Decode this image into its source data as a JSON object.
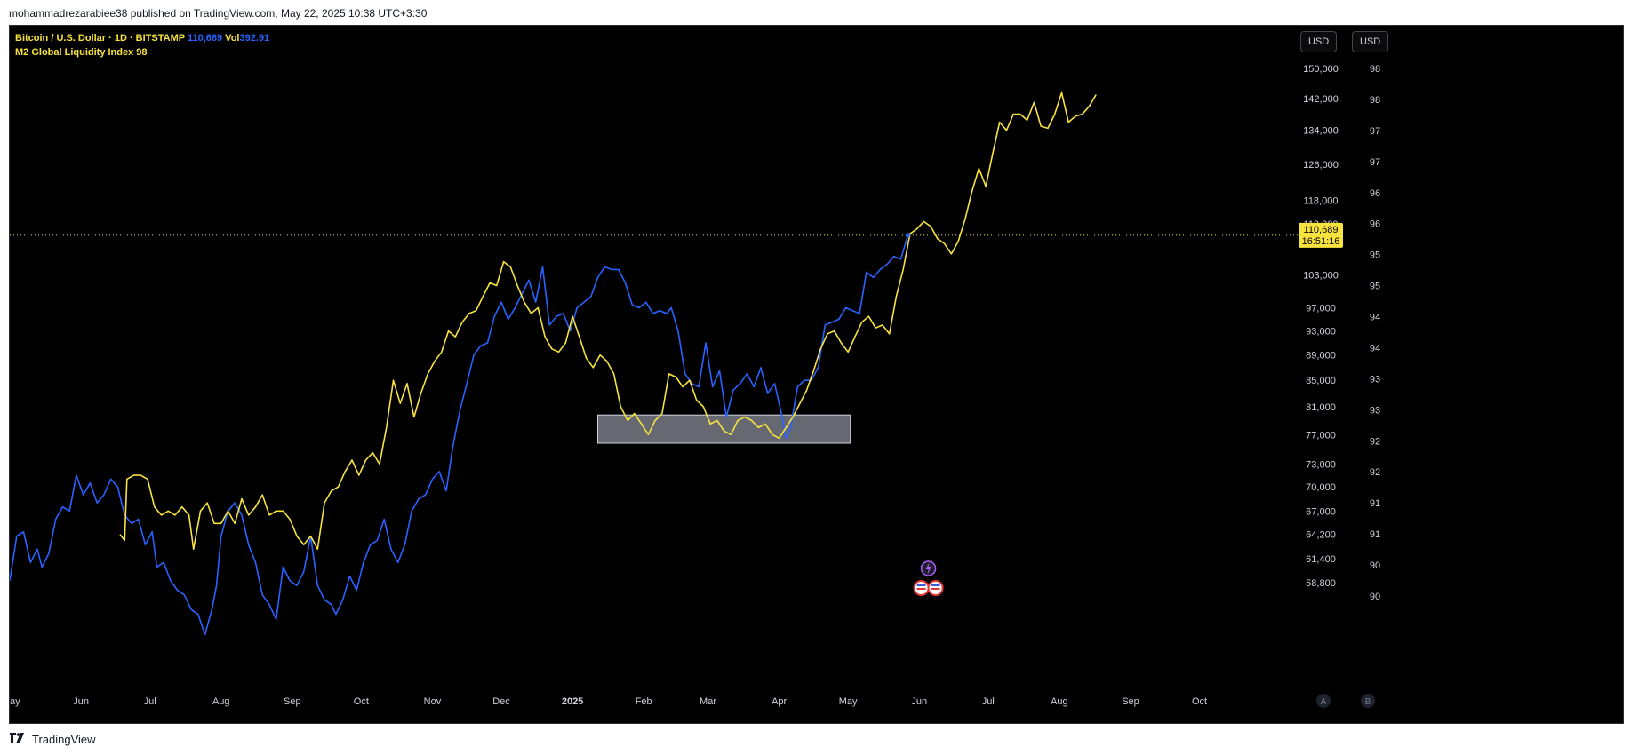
{
  "header": {
    "published_text": "mohammadrezarabiee38 published on TradingView.com, May 22, 2025 10:38 UTC+3:30"
  },
  "legend": {
    "btc_symbol": "Bitcoin / U.S. Dollar · 1D · BITSTAMP",
    "btc_value": "110,689",
    "vol_label": "Vol",
    "vol_value": "392.91",
    "m2_name": "M2 Global Liquidity Index",
    "m2_value": "98"
  },
  "toolbar": {
    "currency_btn_1": "USD",
    "currency_btn_2": "USD"
  },
  "price_label": {
    "price": "110,689",
    "countdown": "16:51:16"
  },
  "scale_buttons": {
    "a": "A",
    "b": "B"
  },
  "footer": {
    "brand": "TradingView"
  },
  "colors": {
    "btc": "#2962ff",
    "m2": "#f7e23e",
    "background": "#000000",
    "highlight_box": "#787b86"
  },
  "chart_data": {
    "type": "line",
    "x_labels": [
      "ay",
      "Jun",
      "Jul",
      "Aug",
      "Sep",
      "Oct",
      "Nov",
      "Dec",
      "2025",
      "Feb",
      "Mar",
      "Apr",
      "May",
      "Jun",
      "Jul",
      "Aug",
      "Sep",
      "Oct"
    ],
    "x_label_days": [
      0,
      31,
      61,
      92,
      123,
      153,
      184,
      214,
      245,
      276,
      304,
      335,
      365,
      396,
      426,
      457,
      488,
      518
    ],
    "right_axis_price_ticks": [
      "150,000",
      "142,000",
      "134,000",
      "126,000",
      "118,000",
      "113,000",
      "103,000",
      "97,000",
      "93,000",
      "89,000",
      "85,000",
      "81,000",
      "77,000",
      "73,000",
      "70,000",
      "67,000",
      "64,200",
      "61,400",
      "58,800"
    ],
    "right_axis_price_values": [
      150000,
      142000,
      134000,
      126000,
      118000,
      113000,
      103000,
      97000,
      93000,
      89000,
      85000,
      81000,
      77000,
      73000,
      70000,
      67000,
      64200,
      61400,
      58800
    ],
    "right_axis_m2_ticks": [
      "98",
      "98",
      "97",
      "97",
      "96",
      "96",
      "95",
      "95",
      "94",
      "94",
      "93",
      "93",
      "92",
      "92",
      "91",
      "91",
      "90",
      "90"
    ],
    "price_scale": "log",
    "ylim": [
      57500,
      158000
    ],
    "current_price": 110689,
    "highlight_zone": {
      "x_start_day": 256,
      "x_end_day": 366,
      "price_low": 75800,
      "price_high": 79800
    },
    "series": [
      {
        "name": "Bitcoin / U.S. Dollar",
        "color": "#2962ff",
        "points": [
          [
            0,
            59000
          ],
          [
            3,
            64000
          ],
          [
            6,
            64500
          ],
          [
            9,
            61000
          ],
          [
            12,
            62500
          ],
          [
            14,
            60500
          ],
          [
            17,
            62000
          ],
          [
            20,
            66000
          ],
          [
            23,
            67500
          ],
          [
            26,
            67000
          ],
          [
            29,
            71500
          ],
          [
            32,
            69000
          ],
          [
            35,
            70500
          ],
          [
            38,
            68000
          ],
          [
            41,
            69000
          ],
          [
            44,
            71000
          ],
          [
            47,
            70000
          ],
          [
            50,
            66500
          ],
          [
            53,
            65500
          ],
          [
            56,
            66000
          ],
          [
            59,
            63000
          ],
          [
            62,
            64500
          ],
          [
            64,
            60500
          ],
          [
            67,
            61000
          ],
          [
            70,
            59000
          ],
          [
            73,
            58000
          ],
          [
            76,
            57500
          ],
          [
            79,
            56000
          ],
          [
            82,
            55500
          ],
          [
            85,
            53500
          ],
          [
            88,
            56000
          ],
          [
            90,
            58500
          ],
          [
            92,
            64000
          ],
          [
            95,
            67000
          ],
          [
            98,
            68000
          ],
          [
            101,
            66500
          ],
          [
            104,
            63000
          ],
          [
            107,
            61000
          ],
          [
            110,
            57500
          ],
          [
            113,
            56500
          ],
          [
            116,
            55000
          ],
          [
            119,
            60500
          ],
          [
            122,
            59000
          ],
          [
            125,
            58500
          ],
          [
            128,
            60000
          ],
          [
            131,
            64000
          ],
          [
            134,
            58500
          ],
          [
            137,
            57000
          ],
          [
            140,
            56500
          ],
          [
            142,
            55500
          ],
          [
            145,
            57000
          ],
          [
            148,
            59500
          ],
          [
            151,
            58000
          ],
          [
            154,
            61000
          ],
          [
            157,
            63000
          ],
          [
            160,
            63500
          ],
          [
            163,
            66000
          ],
          [
            166,
            62500
          ],
          [
            169,
            61000
          ],
          [
            172,
            63000
          ],
          [
            175,
            67000
          ],
          [
            178,
            68500
          ],
          [
            181,
            69000
          ],
          [
            184,
            71000
          ],
          [
            187,
            72000
          ],
          [
            190,
            69500
          ],
          [
            193,
            75500
          ],
          [
            196,
            80500
          ],
          [
            199,
            84500
          ],
          [
            202,
            89000
          ],
          [
            205,
            90500
          ],
          [
            208,
            91000
          ],
          [
            211,
            95500
          ],
          [
            214,
            98000
          ],
          [
            217,
            95000
          ],
          [
            220,
            97000
          ],
          [
            223,
            99500
          ],
          [
            226,
            102000
          ],
          [
            229,
            98000
          ],
          [
            232,
            104500
          ],
          [
            235,
            94000
          ],
          [
            238,
            95500
          ],
          [
            241,
            96000
          ],
          [
            244,
            93000
          ],
          [
            247,
            97000
          ],
          [
            250,
            98000
          ],
          [
            253,
            99000
          ],
          [
            256,
            102500
          ],
          [
            259,
            104500
          ],
          [
            262,
            104000
          ],
          [
            265,
            104000
          ],
          [
            268,
            101500
          ],
          [
            271,
            97500
          ],
          [
            274,
            97000
          ],
          [
            277,
            98000
          ],
          [
            280,
            96000
          ],
          [
            283,
            96500
          ],
          [
            286,
            96000
          ],
          [
            288,
            97000
          ],
          [
            291,
            93000
          ],
          [
            294,
            86000
          ],
          [
            297,
            84500
          ],
          [
            300,
            84000
          ],
          [
            303,
            91000
          ],
          [
            306,
            84000
          ],
          [
            309,
            86500
          ],
          [
            312,
            79500
          ],
          [
            315,
            83500
          ],
          [
            318,
            84500
          ],
          [
            321,
            86000
          ],
          [
            324,
            84000
          ],
          [
            327,
            87000
          ],
          [
            330,
            83000
          ],
          [
            333,
            84500
          ],
          [
            336,
            80000
          ],
          [
            338,
            76500
          ],
          [
            340,
            78000
          ],
          [
            343,
            84000
          ],
          [
            346,
            85000
          ],
          [
            349,
            85000
          ],
          [
            352,
            87000
          ],
          [
            355,
            94000
          ],
          [
            358,
            94500
          ],
          [
            361,
            95000
          ],
          [
            364,
            97000
          ],
          [
            367,
            96500
          ],
          [
            370,
            96000
          ],
          [
            373,
            103500
          ],
          [
            376,
            102500
          ],
          [
            379,
            104000
          ],
          [
            382,
            105000
          ],
          [
            385,
            106500
          ],
          [
            388,
            106000
          ],
          [
            391,
            110689
          ]
        ]
      },
      {
        "name": "M2 Global Liquidity Index",
        "color": "#f7e23e",
        "points": [
          [
            48,
            64200
          ],
          [
            50,
            63500
          ],
          [
            51,
            71000
          ],
          [
            54,
            71500
          ],
          [
            57,
            71500
          ],
          [
            60,
            71000
          ],
          [
            63,
            67500
          ],
          [
            66,
            66500
          ],
          [
            69,
            67000
          ],
          [
            72,
            66500
          ],
          [
            75,
            67500
          ],
          [
            78,
            66500
          ],
          [
            80,
            62500
          ],
          [
            83,
            67000
          ],
          [
            86,
            68000
          ],
          [
            89,
            65500
          ],
          [
            92,
            65500
          ],
          [
            95,
            67000
          ],
          [
            98,
            65500
          ],
          [
            101,
            68500
          ],
          [
            104,
            66500
          ],
          [
            107,
            67500
          ],
          [
            110,
            69000
          ],
          [
            113,
            66500
          ],
          [
            116,
            67000
          ],
          [
            119,
            67000
          ],
          [
            122,
            66000
          ],
          [
            125,
            64000
          ],
          [
            128,
            63000
          ],
          [
            131,
            64000
          ],
          [
            134,
            62500
          ],
          [
            137,
            68000
          ],
          [
            140,
            69500
          ],
          [
            143,
            70000
          ],
          [
            146,
            72000
          ],
          [
            149,
            73500
          ],
          [
            152,
            71500
          ],
          [
            155,
            73500
          ],
          [
            158,
            74500
          ],
          [
            161,
            73000
          ],
          [
            164,
            78000
          ],
          [
            167,
            85000
          ],
          [
            170,
            81500
          ],
          [
            173,
            84500
          ],
          [
            176,
            79500
          ],
          [
            179,
            83000
          ],
          [
            182,
            86000
          ],
          [
            185,
            88000
          ],
          [
            188,
            89500
          ],
          [
            191,
            93000
          ],
          [
            194,
            92000
          ],
          [
            197,
            94500
          ],
          [
            200,
            96000
          ],
          [
            203,
            96500
          ],
          [
            206,
            99000
          ],
          [
            209,
            101500
          ],
          [
            212,
            101000
          ],
          [
            215,
            105500
          ],
          [
            218,
            104500
          ],
          [
            221,
            101000
          ],
          [
            224,
            98000
          ],
          [
            227,
            96000
          ],
          [
            230,
            97000
          ],
          [
            233,
            92000
          ],
          [
            236,
            90000
          ],
          [
            239,
            89500
          ],
          [
            242,
            91000
          ],
          [
            245,
            95500
          ],
          [
            248,
            92000
          ],
          [
            251,
            88500
          ],
          [
            254,
            87000
          ],
          [
            257,
            89000
          ],
          [
            260,
            88000
          ],
          [
            263,
            86000
          ],
          [
            266,
            81000
          ],
          [
            269,
            79000
          ],
          [
            272,
            80000
          ],
          [
            275,
            78500
          ],
          [
            278,
            77000
          ],
          [
            281,
            79000
          ],
          [
            284,
            80000
          ],
          [
            287,
            86000
          ],
          [
            290,
            85500
          ],
          [
            293,
            84000
          ],
          [
            296,
            85000
          ],
          [
            299,
            82000
          ],
          [
            302,
            81000
          ],
          [
            305,
            78500
          ],
          [
            308,
            79000
          ],
          [
            311,
            77500
          ],
          [
            314,
            77000
          ],
          [
            317,
            79000
          ],
          [
            320,
            79500
          ],
          [
            323,
            79000
          ],
          [
            326,
            78000
          ],
          [
            329,
            78500
          ],
          [
            332,
            77000
          ],
          [
            335,
            76500
          ],
          [
            338,
            78000
          ],
          [
            341,
            79500
          ],
          [
            344,
            81500
          ],
          [
            347,
            83500
          ],
          [
            350,
            86500
          ],
          [
            353,
            90000
          ],
          [
            356,
            92500
          ],
          [
            359,
            93000
          ],
          [
            362,
            91000
          ],
          [
            365,
            89500
          ],
          [
            368,
            92000
          ],
          [
            371,
            94500
          ],
          [
            374,
            95500
          ],
          [
            377,
            93500
          ],
          [
            380,
            94000
          ],
          [
            383,
            92500
          ],
          [
            386,
            99000
          ],
          [
            389,
            104000
          ],
          [
            392,
            111000
          ],
          [
            395,
            112000
          ],
          [
            398,
            113500
          ],
          [
            401,
            112500
          ],
          [
            404,
            110000
          ],
          [
            407,
            109000
          ],
          [
            410,
            107000
          ],
          [
            413,
            109500
          ],
          [
            416,
            114000
          ],
          [
            419,
            120000
          ],
          [
            422,
            125000
          ],
          [
            425,
            121000
          ],
          [
            428,
            128500
          ],
          [
            431,
            136000
          ],
          [
            434,
            134000
          ],
          [
            437,
            138000
          ],
          [
            440,
            138000
          ],
          [
            443,
            136500
          ],
          [
            446,
            141000
          ],
          [
            449,
            135000
          ],
          [
            452,
            134500
          ],
          [
            455,
            138000
          ],
          [
            458,
            143500
          ],
          [
            461,
            136000
          ],
          [
            464,
            137500
          ],
          [
            467,
            138000
          ],
          [
            470,
            140000
          ],
          [
            473,
            143000
          ]
        ]
      }
    ]
  }
}
